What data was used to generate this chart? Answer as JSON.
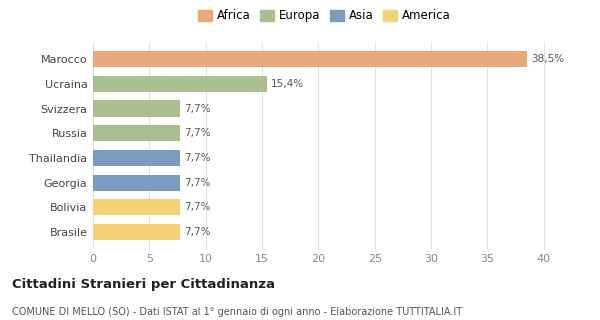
{
  "categories": [
    "Brasile",
    "Bolivia",
    "Georgia",
    "Thailandia",
    "Russia",
    "Svizzera",
    "Ucraina",
    "Marocco"
  ],
  "values": [
    7.7,
    7.7,
    7.7,
    7.7,
    7.7,
    7.7,
    15.4,
    38.5
  ],
  "labels": [
    "7,7%",
    "7,7%",
    "7,7%",
    "7,7%",
    "7,7%",
    "7,7%",
    "15,4%",
    "38,5%"
  ],
  "colors": [
    "#F5D176",
    "#F5D176",
    "#7A9CC0",
    "#7A9CC0",
    "#ABBE8F",
    "#ABBE8F",
    "#ABBE8F",
    "#E8A87C"
  ],
  "legend": [
    {
      "label": "Africa",
      "color": "#E8A87C"
    },
    {
      "label": "Europa",
      "color": "#ABBE8F"
    },
    {
      "label": "Asia",
      "color": "#7A9CC0"
    },
    {
      "label": "America",
      "color": "#F5D176"
    }
  ],
  "xlim": [
    0,
    41
  ],
  "xticks": [
    0,
    5,
    10,
    15,
    20,
    25,
    30,
    35,
    40
  ],
  "title": "Cittadini Stranieri per Cittadinanza",
  "subtitle": "COMUNE DI MELLO (SO) - Dati ISTAT al 1° gennaio di ogni anno - Elaborazione TUTTITALIA.IT",
  "background_color": "#ffffff",
  "grid_color": "#e0e0e0"
}
